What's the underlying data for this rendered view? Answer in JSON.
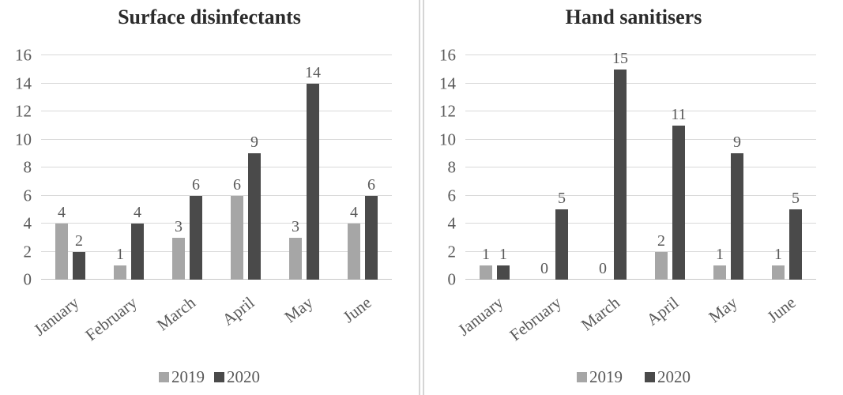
{
  "chart_data": [
    {
      "type": "bar",
      "title": "Surface disinfectants",
      "categories": [
        "January",
        "February",
        "March",
        "April",
        "May",
        "June"
      ],
      "series": [
        {
          "name": "2019",
          "color": "#a6a6a6",
          "values": [
            4,
            1,
            3,
            6,
            3,
            4
          ]
        },
        {
          "name": "2020",
          "color": "#4a4a4a",
          "values": [
            2,
            4,
            6,
            9,
            14,
            6
          ]
        }
      ],
      "xlabel": "",
      "ylabel": "",
      "ylim": [
        0,
        16
      ],
      "y_ticks": [
        0,
        2,
        4,
        6,
        8,
        10,
        12,
        14,
        16
      ],
      "grid": true,
      "data_labels": true,
      "legend_position": "bottom"
    },
    {
      "type": "bar",
      "title": "Hand sanitisers",
      "categories": [
        "January",
        "February",
        "March",
        "April",
        "May",
        "June"
      ],
      "series": [
        {
          "name": "2019",
          "color": "#a6a6a6",
          "values": [
            1,
            0,
            0,
            2,
            1,
            1
          ]
        },
        {
          "name": "2020",
          "color": "#4a4a4a",
          "values": [
            1,
            5,
            15,
            11,
            9,
            5
          ]
        }
      ],
      "xlabel": "",
      "ylabel": "",
      "ylim": [
        0,
        16
      ],
      "y_ticks": [
        0,
        2,
        4,
        6,
        8,
        10,
        12,
        14,
        16
      ],
      "grid": true,
      "data_labels": true,
      "legend_position": "bottom"
    }
  ],
  "colors": {
    "series_2019": "#a6a6a6",
    "series_2020": "#4a4a4a",
    "gridline": "#d9d9d9",
    "axis_text": "#595959",
    "title_text": "#2b2b2b",
    "divider": "#d5d5d5"
  }
}
